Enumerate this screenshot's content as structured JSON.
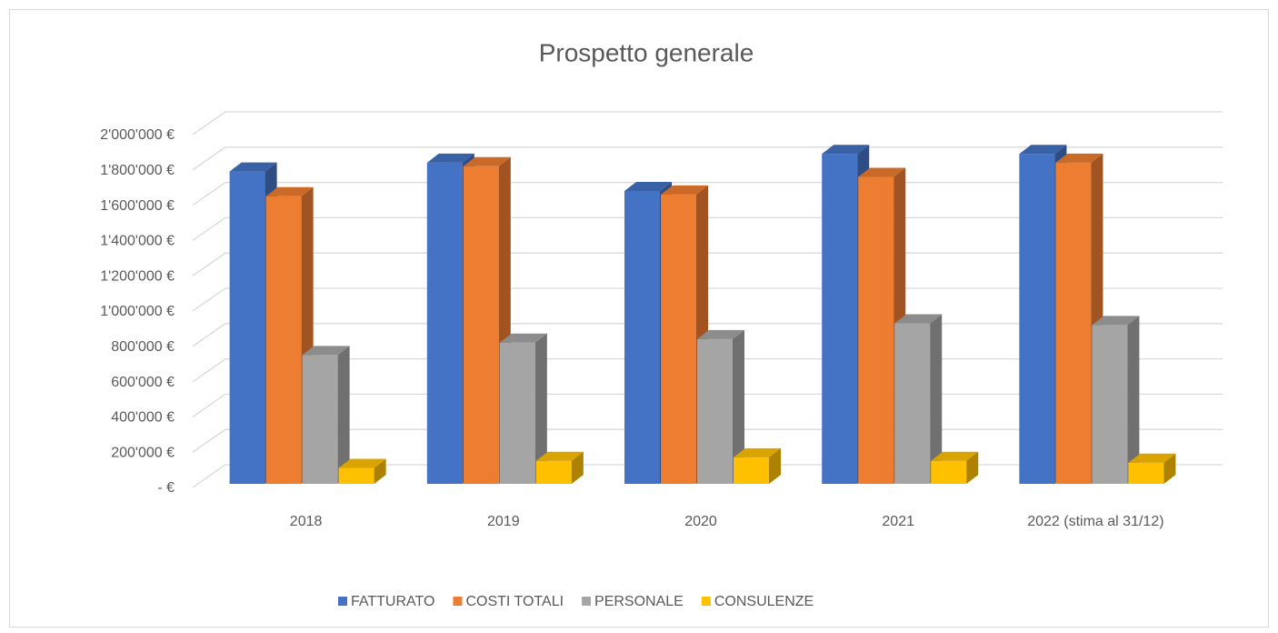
{
  "chart_data": {
    "type": "bar3d",
    "title": "Prospetto generale",
    "categories": [
      "2018",
      "2019",
      "2020",
      "2021",
      "2022 (stima al 31/12)"
    ],
    "series": [
      {
        "name": "FATTURATO",
        "color": "#4472c4",
        "values": [
          1770000,
          1820000,
          1660000,
          1870000,
          1870000
        ]
      },
      {
        "name": "COSTI TOTALI",
        "color": "#ed7d31",
        "values": [
          1630000,
          1800000,
          1640000,
          1740000,
          1820000
        ]
      },
      {
        "name": "PERSONALE",
        "color": "#a5a5a5",
        "values": [
          730000,
          800000,
          820000,
          910000,
          900000
        ]
      },
      {
        "name": "CONSULENZE",
        "color": "#ffc000",
        "values": [
          90000,
          130000,
          150000,
          130000,
          120000
        ]
      }
    ],
    "ylim": [
      0,
      2000000
    ],
    "yticks": [
      {
        "value": 0,
        "label": "-  €"
      },
      {
        "value": 200000,
        "label": "200'000 €"
      },
      {
        "value": 400000,
        "label": "400'000 €"
      },
      {
        "value": 600000,
        "label": "600'000 €"
      },
      {
        "value": 800000,
        "label": "800'000 €"
      },
      {
        "value": 1000000,
        "label": "1'000'000 €"
      },
      {
        "value": 1200000,
        "label": "1'200'000 €"
      },
      {
        "value": 1400000,
        "label": "1'400'000 €"
      },
      {
        "value": 1600000,
        "label": "1'600'000 €"
      },
      {
        "value": 1800000,
        "label": "1'800'000 €"
      },
      {
        "value": 2000000,
        "label": "2'000'000 €"
      }
    ],
    "grid": true,
    "legend": "bottom"
  }
}
